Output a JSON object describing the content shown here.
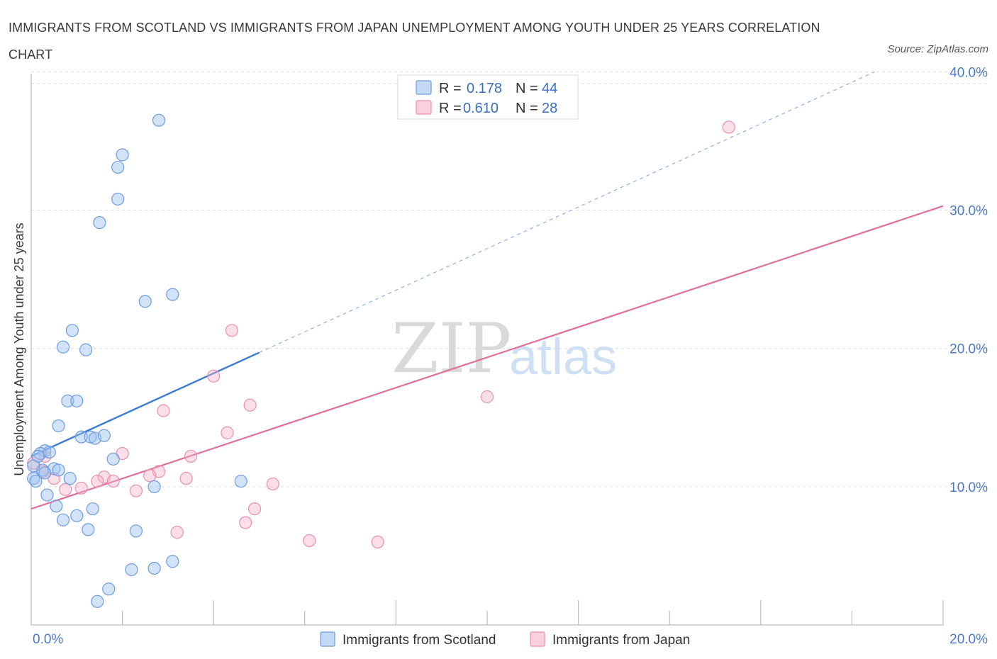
{
  "title": "IMMIGRANTS FROM SCOTLAND VS IMMIGRANTS FROM JAPAN UNEMPLOYMENT AMONG YOUTH UNDER 25 YEARS CORRELATION CHART",
  "source": "Source: ZipAtlas.com",
  "watermark": {
    "zip": "ZIP",
    "atlas": "atlas"
  },
  "colors": {
    "blue": "#3a7bd5",
    "pink": "#e0709a",
    "tick_label": "#4a7ac9"
  },
  "legend": {
    "r_label": "R =",
    "n_label": "N =",
    "scotland": {
      "r": "0.178",
      "n": "44"
    },
    "japan": {
      "r": "0.610",
      "n": "28"
    }
  },
  "chart_data": {
    "type": "scatter",
    "title": "IMMIGRANTS FROM SCOTLAND VS IMMIGRANTS FROM JAPAN UNEMPLOYMENT AMONG YOUTH UNDER 25 YEARS CORRELATION CHART",
    "xlabel": "",
    "ylabel": "Unemployment Among Youth under 25 years",
    "xlim": [
      0,
      20
    ],
    "ylim": [
      0,
      40
    ],
    "x_tick_labels": [
      {
        "value": 0,
        "label": "0.0%"
      },
      {
        "value": 20,
        "label": "20.0%"
      }
    ],
    "y_tick_labels": [
      {
        "value": 10,
        "label": "10.0%"
      },
      {
        "value": 20,
        "label": "20.0%"
      },
      {
        "value": 30,
        "label": "30.0%"
      },
      {
        "value": 40,
        "label": "40.0%"
      }
    ],
    "series": [
      {
        "name": "Immigrants from Scotland",
        "color": "#3a7bd5",
        "r": 0.178,
        "n": 44,
        "points": [
          [
            2.8,
            36.5
          ],
          [
            2.0,
            34.0
          ],
          [
            1.9,
            33.1
          ],
          [
            1.9,
            30.8
          ],
          [
            1.5,
            29.1
          ],
          [
            2.5,
            23.4
          ],
          [
            3.1,
            23.9
          ],
          [
            0.9,
            21.3
          ],
          [
            0.7,
            20.1
          ],
          [
            1.2,
            19.9
          ],
          [
            0.8,
            16.2
          ],
          [
            1.0,
            16.2
          ],
          [
            0.6,
            14.4
          ],
          [
            1.1,
            13.6
          ],
          [
            1.3,
            13.6
          ],
          [
            1.4,
            13.5
          ],
          [
            1.6,
            13.7
          ],
          [
            0.3,
            12.6
          ],
          [
            0.2,
            12.4
          ],
          [
            0.15,
            12.2
          ],
          [
            1.8,
            12.0
          ],
          [
            0.5,
            11.3
          ],
          [
            0.25,
            11.2
          ],
          [
            0.3,
            11.0
          ],
          [
            0.6,
            11.2
          ],
          [
            0.05,
            10.6
          ],
          [
            0.1,
            10.4
          ],
          [
            0.85,
            10.6
          ],
          [
            4.6,
            10.4
          ],
          [
            2.7,
            10.0
          ],
          [
            0.35,
            9.4
          ],
          [
            0.55,
            8.6
          ],
          [
            1.35,
            8.4
          ],
          [
            0.7,
            7.6
          ],
          [
            1.0,
            7.9
          ],
          [
            1.25,
            6.9
          ],
          [
            2.3,
            6.8
          ],
          [
            3.1,
            4.6
          ],
          [
            2.7,
            4.1
          ],
          [
            2.2,
            4.0
          ],
          [
            1.7,
            2.6
          ],
          [
            1.45,
            1.7
          ],
          [
            0.05,
            11.5
          ],
          [
            0.4,
            12.5
          ]
        ]
      },
      {
        "name": "Immigrants from Japan",
        "color": "#e0709a",
        "r": 0.61,
        "n": 28,
        "points": [
          [
            15.3,
            36.0
          ],
          [
            4.4,
            21.3
          ],
          [
            4.0,
            18.0
          ],
          [
            10.0,
            16.5
          ],
          [
            4.8,
            15.9
          ],
          [
            2.9,
            15.5
          ],
          [
            4.3,
            13.9
          ],
          [
            2.0,
            12.4
          ],
          [
            3.5,
            12.2
          ],
          [
            0.3,
            12.2
          ],
          [
            0.05,
            11.7
          ],
          [
            0.25,
            11.1
          ],
          [
            2.8,
            11.1
          ],
          [
            0.5,
            10.6
          ],
          [
            1.6,
            10.7
          ],
          [
            2.6,
            10.8
          ],
          [
            1.45,
            10.4
          ],
          [
            1.8,
            10.4
          ],
          [
            3.4,
            10.6
          ],
          [
            5.3,
            10.2
          ],
          [
            0.75,
            9.8
          ],
          [
            1.1,
            9.9
          ],
          [
            2.3,
            9.7
          ],
          [
            4.9,
            8.4
          ],
          [
            4.7,
            7.4
          ],
          [
            3.2,
            6.7
          ],
          [
            6.1,
            6.1
          ],
          [
            7.6,
            6.0
          ]
        ]
      }
    ],
    "trend_lines": [
      {
        "series": "Immigrants from Scotland",
        "solid_from": [
          0,
          12.2
        ],
        "solid_to": [
          5.0,
          19.7
        ],
        "dashed_to": [
          18.5,
          40.0
        ]
      },
      {
        "series": "Immigrants from Japan",
        "from": [
          0,
          8.4
        ],
        "to": [
          20,
          30.3
        ]
      }
    ]
  }
}
